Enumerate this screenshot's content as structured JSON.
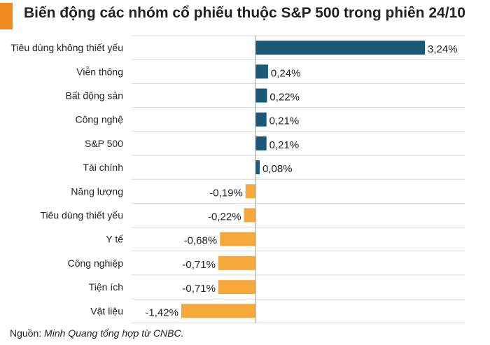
{
  "header": {
    "title": "Biến động các nhóm cổ phiếu thuộc S&P 500 trong phiên 24/10"
  },
  "source": {
    "prefix": "Nguồn: ",
    "detail": "Minh Quang tổng hợp từ CNBC."
  },
  "colors": {
    "positive": "#1a5a78",
    "negative": "#f7a83a",
    "accent": "#f28a22",
    "grid": "#d9d9d9",
    "axis": "#9a9a9a",
    "text": "#222222"
  },
  "chart_data": {
    "type": "bar",
    "orientation": "horizontal",
    "categories": [
      "Tiêu dùng không thiết yếu",
      "Viễn thông",
      "Bất động sản",
      "Công nghệ",
      "S&P 500",
      "Tài chính",
      "Năng lượng",
      "Tiêu dùng thiết yếu",
      "Y tế",
      "Công nghiệp",
      "Tiện ích",
      "Vật liệu"
    ],
    "values": [
      3.24,
      0.24,
      0.22,
      0.21,
      0.21,
      0.08,
      -0.19,
      -0.22,
      -0.68,
      -0.71,
      -0.71,
      -1.42
    ],
    "labels": [
      "3,24%",
      "0,24%",
      "0,22%",
      "0,21%",
      "0,21%",
      "0,08%",
      "-0,19%",
      "-0,22%",
      "-0,68%",
      "-0,71%",
      "-0,71%",
      "-1,42%"
    ],
    "unit": "%",
    "xlim": [
      -1.42,
      3.24
    ],
    "grid": true,
    "legend": "none"
  }
}
